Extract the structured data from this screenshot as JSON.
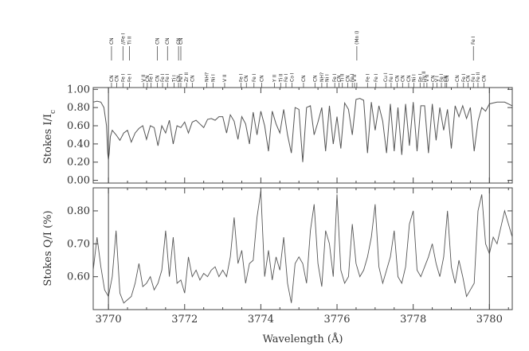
{
  "chart_data": [
    {
      "type": "line",
      "panel": "top",
      "ylabel": "Stokes I/I_c",
      "ylabel_main": "Stokes I/I",
      "ylabel_sub": "c",
      "xlim": [
        3769.6,
        3780.6
      ],
      "ylim": [
        -0.03,
        1.02
      ],
      "yticks": [
        0.0,
        0.2,
        0.4,
        0.6,
        0.8,
        1.0
      ],
      "ytick_labels": [
        "0.00",
        "0.20",
        "0.40",
        "0.60",
        "0.80",
        "1.00"
      ],
      "vlines": [
        3770.0,
        3780.0
      ],
      "grid": false,
      "series": [
        {
          "x": [
            3769.6,
            3769.7,
            3769.8,
            3769.88,
            3769.95,
            3769.98,
            3770.0,
            3770.02,
            3770.05,
            3770.1,
            3770.2,
            3770.3,
            3770.4,
            3770.5,
            3770.6,
            3770.7,
            3770.8,
            3770.9,
            3771.0,
            3771.1,
            3771.2,
            3771.3,
            3771.4,
            3771.5,
            3771.6,
            3771.7,
            3771.8,
            3771.9,
            3772.0,
            3772.1,
            3772.2,
            3772.3,
            3772.4,
            3772.5,
            3772.6,
            3772.7,
            3772.8,
            3772.9,
            3773.0,
            3773.1,
            3773.2,
            3773.3,
            3773.4,
            3773.5,
            3773.6,
            3773.7,
            3773.8,
            3773.9,
            3774.0,
            3774.1,
            3774.2,
            3774.3,
            3774.4,
            3774.5,
            3774.6,
            3774.7,
            3774.8,
            3774.9,
            3775.0,
            3775.1,
            3775.2,
            3775.3,
            3775.4,
            3775.5,
            3775.6,
            3775.7,
            3775.8,
            3775.9,
            3776.0,
            3776.1,
            3776.2,
            3776.3,
            3776.4,
            3776.5,
            3776.6,
            3776.7,
            3776.8,
            3776.9,
            3777.0,
            3777.1,
            3777.2,
            3777.3,
            3777.4,
            3777.5,
            3777.6,
            3777.7,
            3777.8,
            3777.9,
            3778.0,
            3778.1,
            3778.2,
            3778.3,
            3778.4,
            3778.5,
            3778.6,
            3778.7,
            3778.8,
            3778.9,
            3779.0,
            3779.1,
            3779.2,
            3779.3,
            3779.4,
            3779.5,
            3779.6,
            3779.7,
            3779.8,
            3779.9,
            3780.0,
            3780.1,
            3780.2,
            3780.4,
            3780.6
          ],
          "y": [
            0.86,
            0.87,
            0.86,
            0.8,
            0.6,
            0.3,
            0.23,
            0.3,
            0.48,
            0.55,
            0.5,
            0.44,
            0.52,
            0.55,
            0.42,
            0.52,
            0.57,
            0.6,
            0.45,
            0.6,
            0.58,
            0.38,
            0.6,
            0.52,
            0.66,
            0.4,
            0.6,
            0.58,
            0.64,
            0.52,
            0.64,
            0.66,
            0.62,
            0.58,
            0.67,
            0.68,
            0.66,
            0.7,
            0.7,
            0.52,
            0.72,
            0.65,
            0.45,
            0.7,
            0.62,
            0.4,
            0.75,
            0.5,
            0.76,
            0.6,
            0.32,
            0.76,
            0.62,
            0.52,
            0.78,
            0.5,
            0.3,
            0.8,
            0.78,
            0.2,
            0.8,
            0.82,
            0.5,
            0.64,
            0.8,
            0.32,
            0.82,
            0.4,
            0.7,
            0.35,
            0.85,
            0.78,
            0.5,
            0.89,
            0.9,
            0.88,
            0.3,
            0.86,
            0.55,
            0.82,
            0.65,
            0.3,
            0.84,
            0.32,
            0.8,
            0.28,
            0.84,
            0.38,
            0.86,
            0.32,
            0.82,
            0.82,
            0.3,
            0.84,
            0.44,
            0.8,
            0.55,
            0.78,
            0.35,
            0.82,
            0.7,
            0.82,
            0.68,
            0.8,
            0.32,
            0.65,
            0.8,
            0.76,
            0.84,
            0.85,
            0.86,
            0.86,
            0.82
          ]
        }
      ]
    },
    {
      "type": "line",
      "panel": "bottom",
      "xlabel": "Wavelength (Å)",
      "ylabel": "Stokes Q/I (%)",
      "xlim": [
        3769.6,
        3780.6
      ],
      "ylim": [
        0.5,
        0.87
      ],
      "xticks": [
        3770,
        3772,
        3774,
        3776,
        3778,
        3780
      ],
      "xtick_labels": [
        "3770",
        "3772",
        "3774",
        "3776",
        "3778",
        "3780"
      ],
      "yticks": [
        0.6,
        0.7,
        0.8
      ],
      "ytick_labels": [
        "0.60",
        "0.70",
        "0.80"
      ],
      "vlines": [
        3770.0,
        3780.0
      ],
      "grid": false,
      "series": [
        {
          "x": [
            3769.6,
            3769.7,
            3769.8,
            3769.9,
            3770.0,
            3770.1,
            3770.2,
            3770.3,
            3770.4,
            3770.5,
            3770.6,
            3770.7,
            3770.8,
            3770.9,
            3771.0,
            3771.1,
            3771.2,
            3771.3,
            3771.4,
            3771.5,
            3771.6,
            3771.7,
            3771.8,
            3771.9,
            3772.0,
            3772.1,
            3772.2,
            3772.3,
            3772.4,
            3772.5,
            3772.6,
            3772.7,
            3772.8,
            3772.9,
            3773.0,
            3773.1,
            3773.2,
            3773.3,
            3773.4,
            3773.5,
            3773.6,
            3773.7,
            3773.8,
            3773.9,
            3774.0,
            3774.1,
            3774.2,
            3774.3,
            3774.4,
            3774.5,
            3774.6,
            3774.7,
            3774.8,
            3774.9,
            3775.0,
            3775.1,
            3775.2,
            3775.3,
            3775.4,
            3775.5,
            3775.6,
            3775.7,
            3775.8,
            3775.9,
            3776.0,
            3776.1,
            3776.2,
            3776.3,
            3776.4,
            3776.5,
            3776.6,
            3776.7,
            3776.8,
            3776.9,
            3777.0,
            3777.1,
            3777.2,
            3777.3,
            3777.4,
            3777.5,
            3777.6,
            3777.7,
            3777.8,
            3777.9,
            3778.0,
            3778.1,
            3778.2,
            3778.3,
            3778.4,
            3778.5,
            3778.6,
            3778.7,
            3778.8,
            3778.9,
            3779.0,
            3779.1,
            3779.2,
            3779.3,
            3779.4,
            3779.5,
            3779.6,
            3779.7,
            3779.8,
            3779.9,
            3780.0,
            3780.1,
            3780.2,
            3780.4,
            3780.6
          ],
          "y": [
            0.62,
            0.72,
            0.63,
            0.56,
            0.54,
            0.6,
            0.74,
            0.55,
            0.52,
            0.53,
            0.54,
            0.58,
            0.64,
            0.57,
            0.58,
            0.6,
            0.56,
            0.58,
            0.62,
            0.74,
            0.6,
            0.72,
            0.58,
            0.59,
            0.55,
            0.66,
            0.6,
            0.62,
            0.59,
            0.61,
            0.6,
            0.62,
            0.63,
            0.6,
            0.62,
            0.6,
            0.66,
            0.78,
            0.64,
            0.68,
            0.58,
            0.64,
            0.65,
            0.78,
            0.86,
            0.6,
            0.68,
            0.59,
            0.66,
            0.62,
            0.72,
            0.58,
            0.52,
            0.64,
            0.66,
            0.64,
            0.58,
            0.74,
            0.82,
            0.64,
            0.57,
            0.74,
            0.7,
            0.6,
            0.85,
            0.62,
            0.58,
            0.6,
            0.76,
            0.64,
            0.6,
            0.62,
            0.66,
            0.72,
            0.82,
            0.63,
            0.58,
            0.62,
            0.66,
            0.74,
            0.6,
            0.58,
            0.63,
            0.76,
            0.8,
            0.62,
            0.6,
            0.63,
            0.66,
            0.7,
            0.64,
            0.6,
            0.66,
            0.8,
            0.63,
            0.58,
            0.65,
            0.6,
            0.54,
            0.56,
            0.58,
            0.8,
            0.85,
            0.7,
            0.67,
            0.72,
            0.7,
            0.8,
            0.72
          ]
        }
      ]
    }
  ],
  "line_ids": [
    {
      "x": 3770.08,
      "upper": "CN",
      "lower": "CN"
    },
    {
      "x": 3770.22,
      "upper": "",
      "lower": "CN"
    },
    {
      "x": 3770.38,
      "upper": "//Fe I",
      "lower": "Fe I"
    },
    {
      "x": 3770.55,
      "upper": "Ti II",
      "lower": "Fe I"
    },
    {
      "x": 3770.92,
      "upper": "",
      "lower": "V II"
    },
    {
      "x": 3771.02,
      "upper": "",
      "lower": "CN"
    },
    {
      "x": 3771.12,
      "upper": "",
      "lower": "Fe I"
    },
    {
      "x": 3771.28,
      "upper": "CN",
      "lower": "CN"
    },
    {
      "x": 3771.42,
      "upper": "",
      "lower": "Fe I"
    },
    {
      "x": 3771.55,
      "upper": "CN",
      "lower": "Fe I"
    },
    {
      "x": 3771.72,
      "upper": "",
      "lower": "Ti I"
    },
    {
      "x": 3771.84,
      "upper": "CN",
      "lower": "CN"
    },
    {
      "x": 3771.9,
      "upper": "CN",
      "lower": "Fe I"
    },
    {
      "x": 3772.05,
      "upper": "",
      "lower": "Zr II"
    },
    {
      "x": 3772.2,
      "upper": "",
      "lower": "CN"
    },
    {
      "x": 3772.58,
      "upper": "",
      "lower": "NH?"
    },
    {
      "x": 3772.75,
      "upper": "",
      "lower": "Ni I"
    },
    {
      "x": 3773.05,
      "upper": "",
      "lower": "V II"
    },
    {
      "x": 3773.48,
      "upper": "",
      "lower": "Fe I"
    },
    {
      "x": 3773.62,
      "upper": "",
      "lower": "CN"
    },
    {
      "x": 3773.82,
      "upper": "",
      "lower": "Fe I"
    },
    {
      "x": 3774.02,
      "upper": "",
      "lower": "CN"
    },
    {
      "x": 3774.36,
      "upper": "",
      "lower": "Y II"
    },
    {
      "x": 3774.52,
      "upper": "",
      "lower": "Ti II"
    },
    {
      "x": 3774.66,
      "upper": "",
      "lower": "Fe I"
    },
    {
      "x": 3774.82,
      "upper": "",
      "lower": "Co I"
    },
    {
      "x": 3775.12,
      "upper": "",
      "lower": "CN"
    },
    {
      "x": 3775.42,
      "upper": "",
      "lower": "CN"
    },
    {
      "x": 3775.6,
      "upper": "",
      "lower": "NH?"
    },
    {
      "x": 3775.74,
      "upper": "",
      "lower": "Ni I"
    },
    {
      "x": 3775.94,
      "upper": "",
      "lower": "Fe I"
    },
    {
      "x": 3776.05,
      "upper": "",
      "lower": "CN"
    },
    {
      "x": 3776.14,
      "upper": "",
      "lower": "Ti II"
    },
    {
      "x": 3776.28,
      "upper": "",
      "lower": "CN"
    },
    {
      "x": 3776.4,
      "upper": "",
      "lower": "Fe I"
    },
    {
      "x": 3776.46,
      "upper": "",
      "lower": "V II"
    },
    {
      "x": 3776.52,
      "upper": "(Mn I)",
      "lower": ""
    },
    {
      "x": 3776.8,
      "upper": "",
      "lower": "Fe I"
    },
    {
      "x": 3777.02,
      "upper": "",
      "lower": "Fe I"
    },
    {
      "x": 3777.28,
      "upper": "",
      "lower": "Cu I"
    },
    {
      "x": 3777.42,
      "upper": "",
      "lower": "Fe I"
    },
    {
      "x": 3777.58,
      "upper": "",
      "lower": "CN"
    },
    {
      "x": 3777.72,
      "upper": "",
      "lower": "CN"
    },
    {
      "x": 3777.88,
      "upper": "",
      "lower": "CN"
    },
    {
      "x": 3778.02,
      "upper": "",
      "lower": "Ni I"
    },
    {
      "x": 3778.18,
      "upper": "",
      "lower": "Fe I"
    },
    {
      "x": 3778.28,
      "upper": "",
      "lower": "Dy II"
    },
    {
      "x": 3778.36,
      "upper": "",
      "lower": "V II"
    },
    {
      "x": 3778.52,
      "upper": "",
      "lower": "CN"
    },
    {
      "x": 3778.62,
      "upper": "",
      "lower": "V I"
    },
    {
      "x": 3778.74,
      "upper": "",
      "lower": "Fe I"
    },
    {
      "x": 3778.84,
      "upper": "",
      "lower": "CN"
    },
    {
      "x": 3778.88,
      "upper": "",
      "lower": "CN"
    },
    {
      "x": 3779.16,
      "upper": "",
      "lower": "CN"
    },
    {
      "x": 3779.32,
      "upper": "",
      "lower": "Fe I"
    },
    {
      "x": 3779.44,
      "upper": "",
      "lower": "CN"
    },
    {
      "x": 3779.58,
      "upper": "Fe I",
      "lower": "Fe I"
    },
    {
      "x": 3779.7,
      "upper": "",
      "lower": "Fe II"
    },
    {
      "x": 3779.86,
      "upper": "",
      "lower": "CN"
    }
  ]
}
